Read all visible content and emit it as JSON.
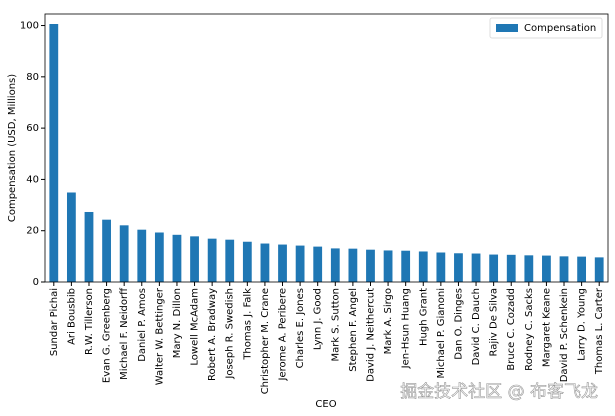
{
  "chart_data": {
    "type": "bar",
    "xlabel": "CEO",
    "ylabel": "Compensation (USD, Millions)",
    "categories": [
      "Sundar Pichai",
      "Ari Bousbib",
      "R.W. Tillerson",
      "Evan G. Greenberg",
      "Michael F. Neidorff",
      "Daniel P. Amos",
      "Walter W. Bettinger",
      "Mary N. Dillon",
      "Lowell McAdam",
      "Robert A. Bradway",
      "Joseph R. Swedish",
      "Thomas J. Falk",
      "Christopher M. Crane",
      "Jerome A. Peribere",
      "Charles E. Jones",
      "Lynn J. Good",
      "Mark S. Sutton",
      "Stephen F. Angel",
      "David J. Neithercut",
      "Mark A. Sirgo",
      "Jen-Hsun Huang",
      "Hugh Grant",
      "Michael P. Gianoni",
      "Dan O. Dinges",
      "David C. Dauch",
      "Rajiv De Silva",
      "Bruce C. Cozadd",
      "Rodney C. Sacks",
      "Margaret Keane",
      "David P. Schenkein",
      "Larry D. Young",
      "Thomas L. Carter"
    ],
    "series": [
      {
        "name": "Compensation",
        "color": "#1f77b4",
        "values": [
          100.6,
          34.9,
          27.3,
          24.3,
          22.1,
          20.4,
          19.3,
          18.4,
          17.8,
          16.9,
          16.5,
          15.7,
          15.0,
          14.6,
          14.2,
          13.8,
          13.1,
          13.0,
          12.6,
          12.3,
          12.2,
          11.9,
          11.5,
          11.2,
          11.1,
          10.7,
          10.6,
          10.4,
          10.3,
          10.0,
          9.9,
          9.6
        ]
      }
    ],
    "ylim": [
      0,
      104.5
    ],
    "yticks": [
      0,
      20,
      40,
      60,
      80,
      100
    ],
    "legend": "upper right",
    "watermark": "掘金技术社区 @ 布客飞龙"
  }
}
